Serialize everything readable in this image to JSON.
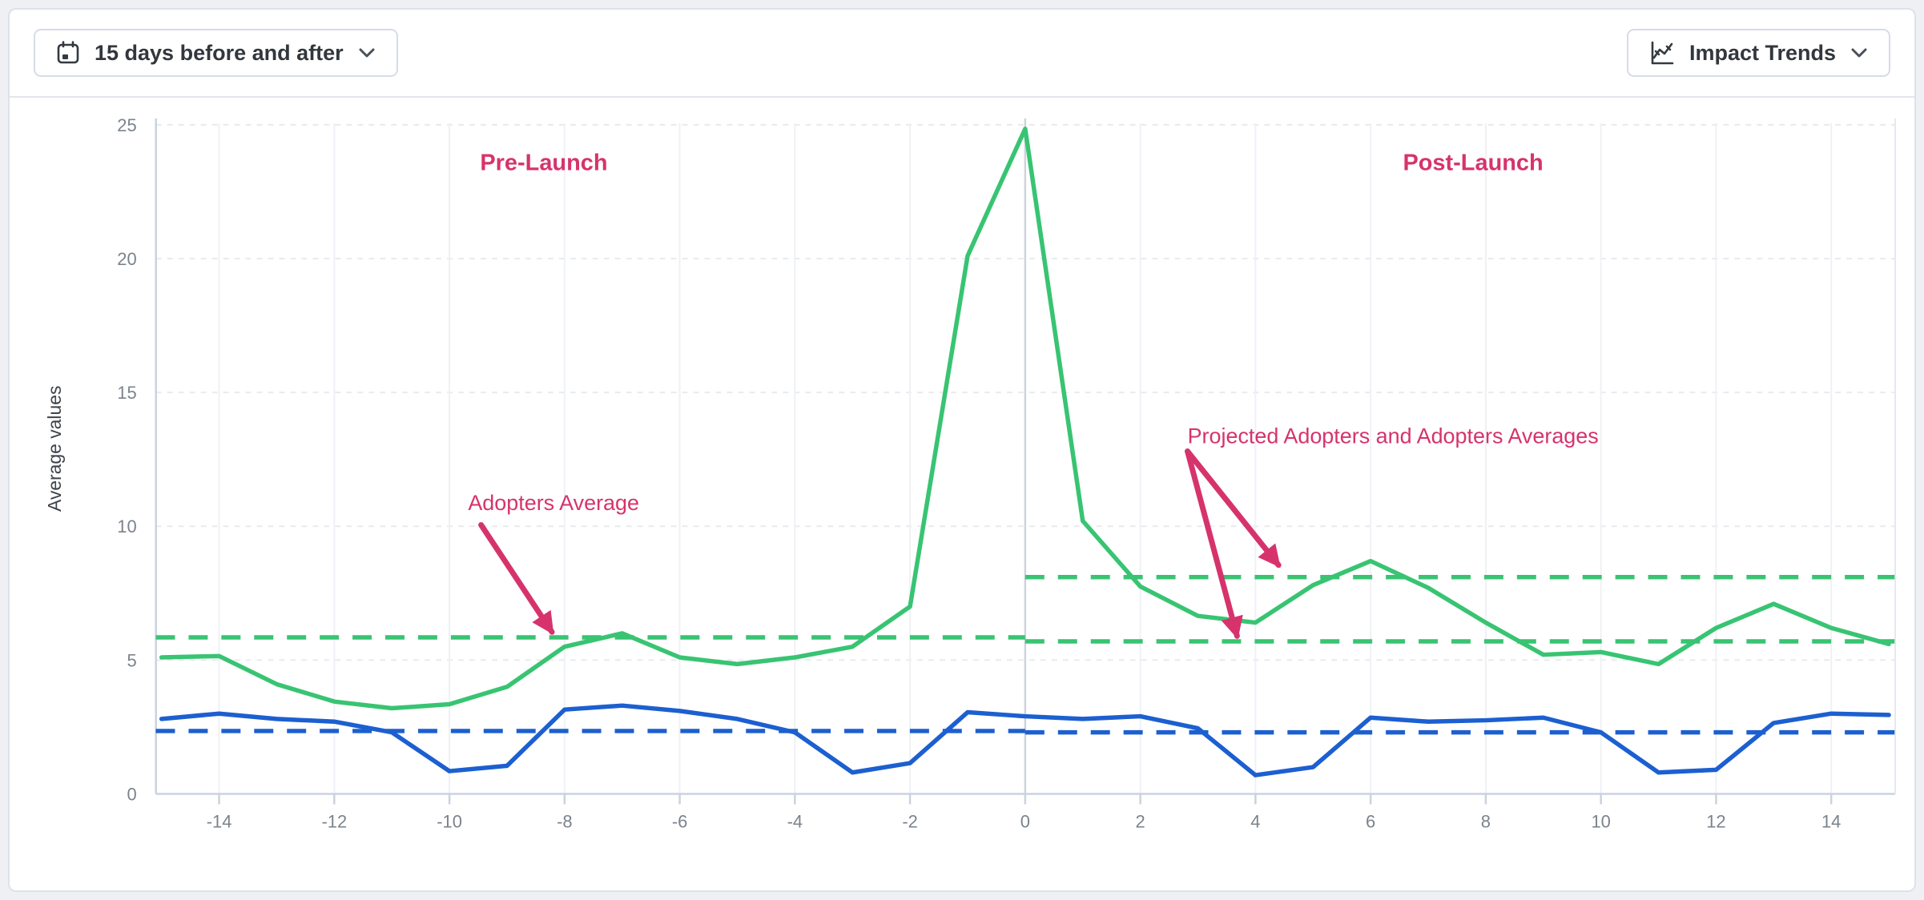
{
  "toolbar": {
    "date_range": {
      "label": "15 days before and after"
    },
    "trends": {
      "label": "Impact Trends"
    }
  },
  "chart_data": {
    "type": "line",
    "title": "",
    "xlabel": "",
    "ylabel": "Average values",
    "xlim": [
      -15.2,
      15.2
    ],
    "ylim": [
      0,
      25
    ],
    "x_ticks": [
      -14,
      -12,
      -10,
      -8,
      -6,
      -4,
      -2,
      0,
      2,
      4,
      6,
      8,
      10,
      12,
      14
    ],
    "y_ticks": [
      0,
      5,
      10,
      15,
      20,
      25
    ],
    "grid": "horizontal-dashed and faint vertical",
    "launch_line_x": 0,
    "x": [
      -15,
      -14,
      -13,
      -12,
      -11,
      -10,
      -9,
      -8,
      -7,
      -6,
      -5,
      -4,
      -3,
      -2,
      -1,
      0,
      1,
      2,
      3,
      4,
      5,
      6,
      7,
      8,
      9,
      10,
      11,
      12,
      13,
      14,
      15
    ],
    "series": [
      {
        "name": "adopters-line",
        "color": "#38c472",
        "values": [
          5.1,
          5.15,
          4.1,
          3.45,
          3.2,
          3.35,
          4.0,
          5.5,
          6.0,
          5.1,
          4.85,
          5.1,
          5.5,
          7.0,
          20.1,
          24.85,
          10.2,
          7.75,
          6.65,
          6.4,
          7.8,
          8.7,
          7.7,
          6.4,
          5.2,
          5.3,
          4.85,
          6.2,
          7.1,
          6.2,
          5.6
        ]
      },
      {
        "name": "secondary-line",
        "color": "#1c5fd0",
        "values": [
          2.8,
          3.0,
          2.8,
          2.7,
          2.3,
          0.85,
          1.05,
          3.15,
          3.3,
          3.1,
          2.8,
          2.3,
          0.8,
          1.15,
          3.05,
          2.9,
          2.8,
          2.9,
          2.45,
          0.7,
          1.0,
          2.85,
          2.7,
          2.75,
          2.85,
          2.3,
          0.8,
          0.9,
          2.65,
          3.0,
          2.95
        ]
      }
    ],
    "reference_lines": [
      {
        "name": "adopters-average-pre",
        "value": 5.85,
        "from": -15.1,
        "to": 0,
        "color": "#38c472"
      },
      {
        "name": "adopters-average-post",
        "value": 8.1,
        "from": 0,
        "to": 15.1,
        "color": "#38c472"
      },
      {
        "name": "projected-adopters-average-post",
        "value": 5.7,
        "from": 0,
        "to": 15.1,
        "color": "#38c472"
      },
      {
        "name": "secondary-average-pre",
        "value": 2.35,
        "from": -15.1,
        "to": 0,
        "color": "#1c5fd0"
      },
      {
        "name": "secondary-average-post",
        "value": 2.3,
        "from": 0,
        "to": 15.1,
        "color": "#1c5fd0"
      }
    ],
    "annotation_color": "#d6336c",
    "annotations": {
      "pre_launch": {
        "text": "Pre-Launch",
        "x": -8.36,
        "y": 23.3
      },
      "post_launch": {
        "text": "Post-Launch",
        "x": 7.78,
        "y": 23.3
      },
      "adopters_average": {
        "text": "Adopters Average",
        "x": -8.19,
        "y": 10.6,
        "arrows": [
          {
            "x1": -9.45,
            "y1": 10.05,
            "x2": -8.22,
            "y2": 6.05
          }
        ]
      },
      "projected": {
        "text": "Projected Adopters and Adopters Averages",
        "x": 6.39,
        "y": 13.1,
        "arrows": [
          {
            "x1": 2.82,
            "y1": 12.8,
            "x2": 4.4,
            "y2": 8.55
          },
          {
            "x1": 2.82,
            "y1": 12.8,
            "x2": 3.68,
            "y2": 5.9
          }
        ]
      }
    }
  }
}
